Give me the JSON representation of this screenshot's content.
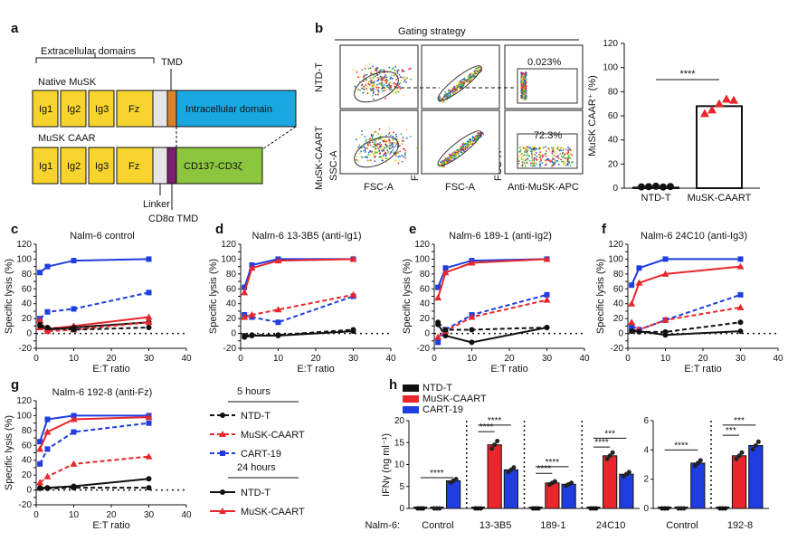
{
  "panel_letters": {
    "a": "a",
    "b": "b",
    "c": "c",
    "d": "d",
    "e": "e",
    "f": "f",
    "g": "g",
    "h": "h"
  },
  "panel_a": {
    "extracellular_label": "Extracellular domains",
    "tmd_label": "TMD",
    "native_label": "Native MuSK",
    "caar_label": "MuSK CAAR",
    "domains": [
      "Ig1",
      "Ig2",
      "Ig3",
      "Fz"
    ],
    "intracellular_label": "Intracellular domain",
    "signal_label": "CD137-CD3ζ",
    "linker_label": "Linker",
    "cd8_label": "CD8α TMD",
    "colors": {
      "domain": "#f6d32d",
      "intracellular": "#1aa7e0",
      "signal": "#8cc63f",
      "tmd": "#d9822b",
      "cd8": "#7b1f6e",
      "linker": "#e6e6e6"
    }
  },
  "panel_b": {
    "gating_title": "Gating strategy",
    "row_labels": [
      "NTD-T",
      "MuSK-CAART"
    ],
    "ssc_label": "SSC-A",
    "fsc_h_label": "FSC-H",
    "x_labels": [
      "FSC-A",
      "FSC-A",
      "Anti-MuSK-APC"
    ],
    "percents": [
      "0.023%",
      "72.3%"
    ]
  },
  "bar_b": {
    "chart_data": {
      "type": "bar",
      "categories": [
        "NTD-T",
        "MuSK-CAART"
      ],
      "values": [
        0.5,
        68
      ],
      "points": [
        [
          0.3,
          0.5,
          0.8,
          0.2,
          0.6
        ],
        [
          62,
          65,
          70,
          74,
          73
        ]
      ],
      "ylabel": "MuSK CAAR⁺ (%)",
      "ylim": [
        0,
        120
      ],
      "yticks": [
        0,
        20,
        40,
        60,
        80,
        100,
        120
      ],
      "sig": "****"
    }
  },
  "lysis_common": {
    "ylabel": "Specific lysis (%)",
    "xlabel": "E:T ratio",
    "xticks": [
      0,
      10,
      20,
      30,
      40
    ],
    "yticks": [
      -20,
      -10,
      0,
      10,
      20,
      30,
      40,
      50,
      60,
      70,
      80,
      90,
      100,
      110,
      120
    ],
    "x": [
      1,
      3,
      10,
      30
    ]
  },
  "lysis_panels": [
    {
      "title": "Nalm-6 control",
      "series": [
        {
          "style": "solid",
          "color": "#1f3de0",
          "values": [
            82,
            90,
            98,
            100
          ]
        },
        {
          "style": "solid",
          "color": "#e8262b",
          "values": [
            8,
            6,
            10,
            22
          ]
        },
        {
          "style": "solid",
          "color": "#111111",
          "values": [
            10,
            5,
            8,
            15
          ]
        },
        {
          "style": "dashed",
          "color": "#1f3de0",
          "values": [
            20,
            29,
            33,
            55
          ]
        },
        {
          "style": "dashed",
          "color": "#e8262b",
          "values": [
            18,
            3,
            5,
            15
          ]
        },
        {
          "style": "dashed",
          "color": "#111111",
          "values": [
            12,
            8,
            5,
            8
          ]
        }
      ]
    },
    {
      "title": "Nalm-6 13-3B5 (anti-Ig1)",
      "series": [
        {
          "style": "solid",
          "color": "#1f3de0",
          "values": [
            62,
            92,
            100,
            100
          ]
        },
        {
          "style": "solid",
          "color": "#e8262b",
          "values": [
            55,
            88,
            98,
            100
          ]
        },
        {
          "style": "solid",
          "color": "#111111",
          "values": [
            -5,
            -3,
            -3,
            3
          ]
        },
        {
          "style": "dashed",
          "color": "#1f3de0",
          "values": [
            25,
            22,
            15,
            50
          ]
        },
        {
          "style": "dashed",
          "color": "#e8262b",
          "values": [
            22,
            25,
            32,
            52
          ]
        },
        {
          "style": "dashed",
          "color": "#111111",
          "values": [
            -3,
            -2,
            -2,
            5
          ]
        }
      ]
    },
    {
      "title": "Nalm-6 189-1 (anti-Ig2)",
      "series": [
        {
          "style": "solid",
          "color": "#1f3de0",
          "values": [
            62,
            88,
            98,
            100
          ]
        },
        {
          "style": "solid",
          "color": "#e8262b",
          "values": [
            48,
            82,
            95,
            100
          ]
        },
        {
          "style": "solid",
          "color": "#111111",
          "values": [
            12,
            -3,
            -12,
            8
          ]
        },
        {
          "style": "dashed",
          "color": "#1f3de0",
          "values": [
            -12,
            5,
            25,
            52
          ]
        },
        {
          "style": "dashed",
          "color": "#e8262b",
          "values": [
            -5,
            3,
            22,
            45
          ]
        },
        {
          "style": "dashed",
          "color": "#111111",
          "values": [
            15,
            5,
            5,
            8
          ]
        }
      ]
    },
    {
      "title": "Nalm-6 24C10 (anti-Ig3)",
      "series": [
        {
          "style": "solid",
          "color": "#1f3de0",
          "values": [
            65,
            88,
            100,
            100
          ]
        },
        {
          "style": "solid",
          "color": "#e8262b",
          "values": [
            40,
            68,
            80,
            90
          ]
        },
        {
          "style": "solid",
          "color": "#111111",
          "values": [
            5,
            3,
            -2,
            3
          ]
        },
        {
          "style": "dashed",
          "color": "#1f3de0",
          "values": [
            10,
            5,
            18,
            52
          ]
        },
        {
          "style": "dashed",
          "color": "#e8262b",
          "values": [
            15,
            5,
            18,
            35
          ]
        },
        {
          "style": "dashed",
          "color": "#111111",
          "values": [
            3,
            2,
            2,
            15
          ]
        }
      ]
    },
    {
      "title": "Nalm-6 192-8 (anti-Fz)",
      "series": [
        {
          "style": "solid",
          "color": "#1f3de0",
          "values": [
            65,
            95,
            100,
            100
          ]
        },
        {
          "style": "solid",
          "color": "#e8262b",
          "values": [
            55,
            78,
            95,
            98
          ]
        },
        {
          "style": "solid",
          "color": "#111111",
          "values": [
            3,
            3,
            5,
            15
          ]
        },
        {
          "style": "dashed",
          "color": "#1f3de0",
          "values": [
            35,
            55,
            78,
            90
          ]
        },
        {
          "style": "dashed",
          "color": "#e8262b",
          "values": [
            10,
            18,
            35,
            45
          ]
        },
        {
          "style": "dashed",
          "color": "#111111",
          "values": [
            2,
            2,
            3,
            3
          ]
        }
      ]
    }
  ],
  "legend_g": {
    "h5": "5 hours",
    "h24": "24 hours",
    "items": [
      {
        "label": "NTD-T",
        "color": "#111111",
        "style": "dashed"
      },
      {
        "label": "MuSK-CAART",
        "color": "#e8262b",
        "style": "dashed"
      },
      {
        "label": "CART-19",
        "color": "#1f3de0",
        "style": "dashed"
      },
      {
        "label": "NTD-T",
        "color": "#111111",
        "style": "solid"
      },
      {
        "label": "MuSK-CAART",
        "color": "#e8262b",
        "style": "solid"
      }
    ]
  },
  "panel_h": {
    "legend": [
      {
        "label": "NTD-T",
        "color": "#111111"
      },
      {
        "label": "MuSK-CAART",
        "color": "#e8262b"
      },
      {
        "label": "CART-19",
        "color": "#1f3de0"
      }
    ],
    "ylabel": "IFNγ (ng ml⁻¹)",
    "row_label": "Nalm-6:",
    "chart_data": [
      {
        "type": "bar",
        "ylim": [
          0,
          20
        ],
        "yticks": [
          0,
          5,
          10,
          15,
          20
        ],
        "categories": [
          "Control",
          "13-3B5",
          "189-1",
          "24C10"
        ],
        "series": [
          {
            "name": "NTD-T",
            "values": [
              0,
              0,
              0,
              0
            ]
          },
          {
            "name": "MuSK-CAART",
            "values": [
              0,
              14.5,
              5.8,
              12
            ]
          },
          {
            "name": "CART-19",
            "values": [
              6.3,
              8.8,
              5.5,
              7.8
            ]
          }
        ],
        "sig": [
          {
            "label": "****"
          },
          {
            "label": "****"
          },
          {
            "label": "****"
          },
          {
            "label": "****"
          },
          {
            "label": "****"
          },
          {
            "label": "***"
          },
          {
            "label": "****"
          }
        ]
      },
      {
        "type": "bar",
        "ylim": [
          0,
          6
        ],
        "yticks": [
          0,
          2,
          4,
          6
        ],
        "categories": [
          "Control",
          "192-8"
        ],
        "series": [
          {
            "name": "NTD-T",
            "values": [
              0,
              0
            ]
          },
          {
            "name": "MuSK-CAART",
            "values": [
              0,
              3.6
            ]
          },
          {
            "name": "CART-19",
            "values": [
              3.1,
              4.3
            ]
          }
        ],
        "sig": [
          {
            "label": "****"
          },
          {
            "label": "***"
          },
          {
            "label": "***"
          }
        ]
      }
    ]
  }
}
